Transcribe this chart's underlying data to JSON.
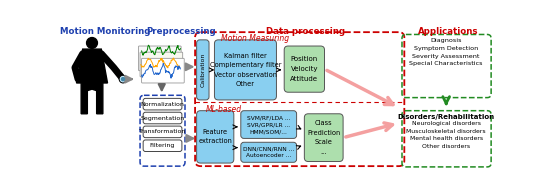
{
  "title_motion": "Motion Monitoring",
  "title_preproc": "Preprocessing",
  "title_dataproc": "Data processing",
  "title_apps": "Applications",
  "preproc_items": [
    "Normalization",
    "Segmentation",
    "Transformation",
    "Filtering"
  ],
  "motion_measuring_label": "Motion Measuring",
  "calibration_label": "Calibration",
  "filters_text": "Kalman filter\nComplementary filter\nVector observation\nOther",
  "position_text": "Position\nVelocity\nAttitude",
  "ml_based_label": "ML-based",
  "feature_label": "Feature\nextraction",
  "ml_upper_text": "SVM/RF/LDA ...\nSVR/GPR/LR ...\nHMM/SOM/...",
  "ml_lower_text": "DNN/CNN/RNN ...\nAutoencoder ...",
  "class_text": "Class\nPrediction\nScale\n...",
  "diag_text": "Diagnosis\nSymptom Detection\nSeverity Assessment\nSpecial Characteristics",
  "disord_title": "Disorders/Rehabilitation",
  "disord_text": "Neurological disorders\nMusculoskeletal disorders\nMental health disorders\nOther disorders",
  "color_blue_box": "#89CFF0",
  "color_green_box": "#ADDFAD",
  "color_green_dashed": "#228B22",
  "color_blue_dashed": "#1E40AF",
  "color_red_dashed": "#CC0000",
  "color_title_red": "#CC0000",
  "color_title_blue": "#1E40AF",
  "fig_bg": "#FFFFFF"
}
